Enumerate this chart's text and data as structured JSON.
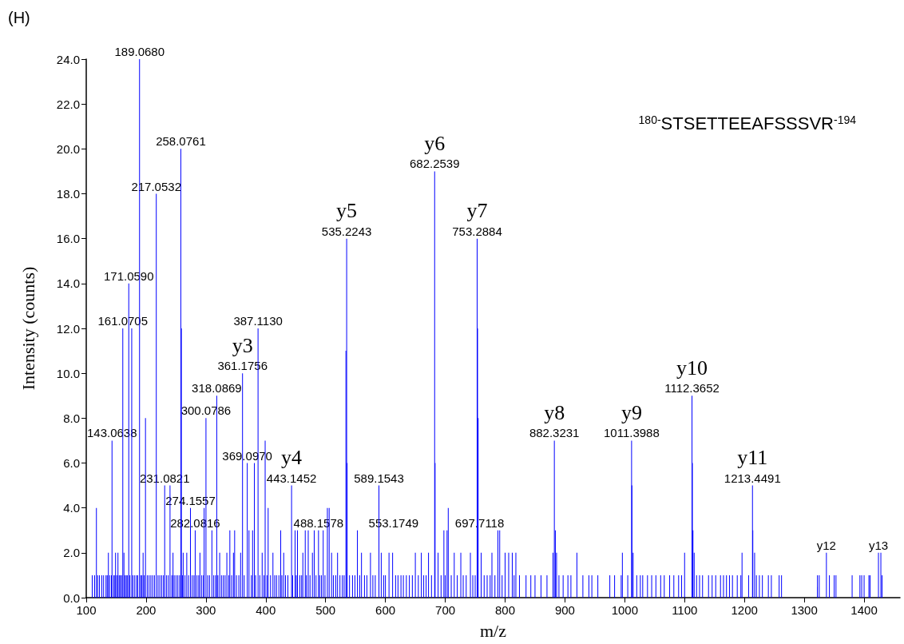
{
  "chart_data": {
    "type": "bar",
    "xlabel": "m/z",
    "ylabel": "Intensity (counts)",
    "annotations": [
      "(H)",
      "$^{180-}$STSETTEEAFSSSVR$^{-194}$",
      {
        "text": "143.0638",
        "x": 143.0638,
        "y": 7
      },
      {
        "text": "161.0705",
        "x": 161.0705,
        "y": 12
      },
      {
        "text": "171.0590",
        "x": 171.059,
        "y": 14
      },
      {
        "text": "189.0680",
        "x": 189.068,
        "y": 24
      },
      {
        "text": "217.0532",
        "x": 217.0532,
        "y": 18
      },
      {
        "text": "231.0821",
        "x": 231.0821,
        "y": 5
      },
      {
        "text": "258.0761",
        "x": 258.0761,
        "y": 20
      },
      {
        "text": "274.1557",
        "x": 274.1557,
        "y": 4
      },
      {
        "text": "282.0816",
        "x": 282.0816,
        "y": 3
      },
      {
        "text": "300.0786",
        "x": 300.0786,
        "y": 8
      },
      {
        "text": "318.0869",
        "x": 318.0869,
        "y": 9
      },
      {
        "text": "361.1756",
        "x": 361.1756,
        "y": 10
      },
      {
        "text": "y3",
        "x": 361.1756,
        "y": 10
      },
      {
        "text": "369.0970",
        "x": 369.097,
        "y": 6
      },
      {
        "text": "387.1130",
        "x": 387.113,
        "y": 12
      },
      {
        "text": "443.1452",
        "x": 443.1452,
        "y": 5
      },
      {
        "text": "y4",
        "x": 443.1452,
        "y": 5
      },
      {
        "text": "488.1578",
        "x": 488.1578,
        "y": 3
      },
      {
        "text": "535.2243",
        "x": 535.2243,
        "y": 16
      },
      {
        "text": "y5",
        "x": 535.2243,
        "y": 16
      },
      {
        "text": "553.1749",
        "x": 553.1749,
        "y": 3
      },
      {
        "text": "589.1543",
        "x": 589.1543,
        "y": 5
      },
      {
        "text": "682.2539",
        "x": 682.2539,
        "y": 19
      },
      {
        "text": "y6",
        "x": 682.2539,
        "y": 19
      },
      {
        "text": "697.7118",
        "x": 697.7118,
        "y": 3
      },
      {
        "text": "753.2884",
        "x": 753.2884,
        "y": 16
      },
      {
        "text": "y7",
        "x": 753.2884,
        "y": 16
      },
      {
        "text": "882.3231",
        "x": 882.3231,
        "y": 7
      },
      {
        "text": "y8",
        "x": 882.3231,
        "y": 7
      },
      {
        "text": "1011.3988",
        "x": 1011.3988,
        "y": 7
      },
      {
        "text": "y9",
        "x": 1011.3988,
        "y": 7
      },
      {
        "text": "1112.3652",
        "x": 1112.3652,
        "y": 9
      },
      {
        "text": "y10",
        "x": 1112.3652,
        "y": 9
      },
      {
        "text": "1213.4491",
        "x": 1213.4491,
        "y": 5
      },
      {
        "text": "y11",
        "x": 1213.4491,
        "y": 5
      },
      {
        "text": "y12",
        "x": 1337,
        "y": 2
      },
      {
        "text": "y13",
        "x": 1424,
        "y": 2
      }
    ],
    "color": "#0000ff",
    "x": [
      110,
      114,
      117,
      119,
      122,
      126,
      129,
      133,
      135,
      137,
      139,
      142,
      143.0638,
      146,
      148,
      149,
      151,
      153,
      155,
      157,
      159,
      161.0705,
      163,
      165,
      167,
      169,
      171.059,
      173,
      176,
      178,
      181,
      184,
      186,
      189.068,
      191,
      193,
      195,
      197,
      199,
      202,
      205,
      208,
      211,
      214,
      217.0532,
      220,
      223,
      226,
      229,
      231.0821,
      234,
      237,
      240,
      243,
      245,
      247,
      250,
      253,
      256,
      258.0761,
      259,
      261,
      262,
      265,
      268,
      271,
      274.1557,
      277,
      280,
      282.0816,
      285,
      288,
      290,
      293,
      296,
      297,
      300.0786,
      303,
      306,
      310,
      313,
      316,
      318.0869,
      320,
      323,
      326,
      329,
      332,
      335,
      338,
      340,
      343,
      346,
      348,
      351,
      355,
      358,
      361.1756,
      364,
      369.097,
      372,
      376,
      378,
      381,
      383,
      387.113,
      390,
      394,
      397,
      399,
      402,
      404,
      408,
      412,
      415,
      418,
      422,
      425,
      427,
      430,
      433,
      437,
      443.1452,
      445,
      449,
      451,
      453,
      457,
      460,
      462,
      466,
      468,
      471,
      474,
      478,
      481,
      484,
      488.1578,
      490,
      493,
      496,
      499,
      503,
      506,
      510,
      513,
      517,
      520,
      524,
      528,
      531,
      534,
      535.2243,
      536,
      540,
      545,
      549,
      553.1749,
      557,
      560,
      565,
      569,
      575,
      579,
      583,
      589.1543,
      593,
      597,
      600,
      606,
      612,
      617,
      621,
      626,
      630,
      635,
      640,
      645,
      650,
      655,
      660,
      664,
      668,
      672,
      677,
      682.2539,
      683,
      688,
      693,
      697.7118,
      700,
      703,
      705,
      710,
      715,
      720,
      726,
      730,
      735,
      742,
      746,
      750,
      753.2884,
      754,
      755,
      760,
      765,
      770,
      775,
      778,
      783,
      788,
      791,
      795,
      800,
      806,
      812,
      815,
      818,
      824,
      835,
      843,
      850,
      860,
      870,
      880,
      882.3231,
      884,
      886,
      890,
      897,
      905,
      910,
      920,
      930,
      940,
      945,
      955,
      975,
      983,
      994,
      996,
      1005,
      1011.3988,
      1012,
      1014,
      1020,
      1026,
      1030,
      1038,
      1045,
      1052,
      1060,
      1066,
      1075,
      1082,
      1090,
      1095,
      1100,
      1112.3652,
      1113,
      1114,
      1116,
      1120,
      1125,
      1130,
      1140,
      1146,
      1152,
      1160,
      1165,
      1170,
      1175,
      1180,
      1188,
      1194,
      1196,
      1207,
      1213.4491,
      1214,
      1217,
      1220,
      1225,
      1230,
      1240,
      1245,
      1258,
      1262,
      1322,
      1325,
      1337,
      1342,
      1350,
      1353,
      1380,
      1393,
      1396,
      1400,
      1408,
      1410,
      1424,
      1428,
      1430
    ],
    "values": [
      1,
      1,
      4,
      1,
      1,
      1,
      1,
      1,
      1,
      2,
      1,
      1,
      7,
      1,
      1,
      2,
      1,
      2,
      1,
      1,
      1,
      12,
      2,
      1,
      1,
      1,
      14,
      1,
      12,
      1,
      1,
      1,
      1,
      24,
      1,
      1,
      2,
      1,
      8,
      1,
      1,
      1,
      1,
      1,
      18,
      1,
      1,
      1,
      1,
      5,
      1,
      1,
      5,
      1,
      2,
      1,
      1,
      1,
      1,
      20,
      12,
      1,
      2,
      1,
      2,
      1,
      4,
      1,
      1,
      3,
      1,
      1,
      2,
      1,
      1,
      4,
      8,
      1,
      1,
      3,
      1,
      1,
      9,
      1,
      2,
      1,
      1,
      1,
      2,
      1,
      3,
      1,
      2,
      3,
      1,
      1,
      2,
      10,
      1,
      6,
      3,
      1,
      3,
      6,
      1,
      12,
      1,
      2,
      1,
      7,
      1,
      4,
      1,
      2,
      1,
      1,
      1,
      3,
      1,
      2,
      1,
      1,
      5,
      1,
      3,
      1,
      3,
      1,
      1,
      2,
      3,
      1,
      3,
      1,
      2,
      3,
      1,
      3,
      1,
      1,
      3,
      1,
      4,
      4,
      2,
      1,
      1,
      2,
      1,
      1,
      1,
      11,
      16,
      6,
      1,
      1,
      1,
      3,
      1,
      2,
      1,
      1,
      2,
      1,
      1,
      5,
      2,
      1,
      1,
      2,
      2,
      1,
      1,
      1,
      1,
      1,
      1,
      1,
      2,
      1,
      2,
      1,
      1,
      2,
      1,
      19,
      6,
      2,
      1,
      3,
      1,
      3,
      4,
      1,
      2,
      1,
      2,
      1,
      1,
      2,
      1,
      1,
      16,
      12,
      8,
      2,
      1,
      1,
      1,
      2,
      1,
      3,
      3,
      1,
      2,
      2,
      2,
      1,
      2,
      1,
      1,
      1,
      1,
      1,
      1,
      2,
      7,
      3,
      2,
      1,
      1,
      1,
      1,
      2,
      1,
      1,
      1,
      1,
      1,
      1,
      1,
      2,
      1,
      7,
      5,
      2,
      1,
      1,
      1,
      1,
      1,
      1,
      1,
      1,
      1,
      1,
      1,
      1,
      2,
      9,
      6,
      3,
      2,
      1,
      1,
      1,
      1,
      1,
      1,
      1,
      1,
      1,
      1,
      1,
      1,
      1,
      2,
      1,
      5,
      3,
      2,
      1,
      1,
      1,
      1,
      1,
      1,
      1,
      1,
      1,
      2,
      1,
      1,
      1,
      1,
      1,
      1,
      1,
      1,
      1,
      2,
      2,
      1
    ],
    "xlim": [
      100,
      1460
    ],
    "xticks": [
      100,
      200,
      300,
      400,
      500,
      600,
      700,
      800,
      900,
      1000,
      1100,
      1200,
      1300,
      1400
    ],
    "ylim": [
      0,
      24
    ],
    "yticks": [
      {
        "value": 0,
        "label": "0.0"
      },
      {
        "value": 2,
        "label": "2.0"
      },
      {
        "value": 4,
        "label": "4.0"
      },
      {
        "value": 6,
        "label": "6.0"
      },
      {
        "value": 8,
        "label": "8.0"
      },
      {
        "value": 10,
        "label": "10.0"
      },
      {
        "value": 12,
        "label": "12.0"
      },
      {
        "value": 14,
        "label": "14.0"
      },
      {
        "value": 16,
        "label": "16.0"
      },
      {
        "value": 18,
        "label": "18.0"
      },
      {
        "value": 20,
        "label": "20.0"
      },
      {
        "value": 22,
        "label": "22.0"
      },
      {
        "value": 24,
        "label": "24.0"
      }
    ],
    "grid": false
  }
}
